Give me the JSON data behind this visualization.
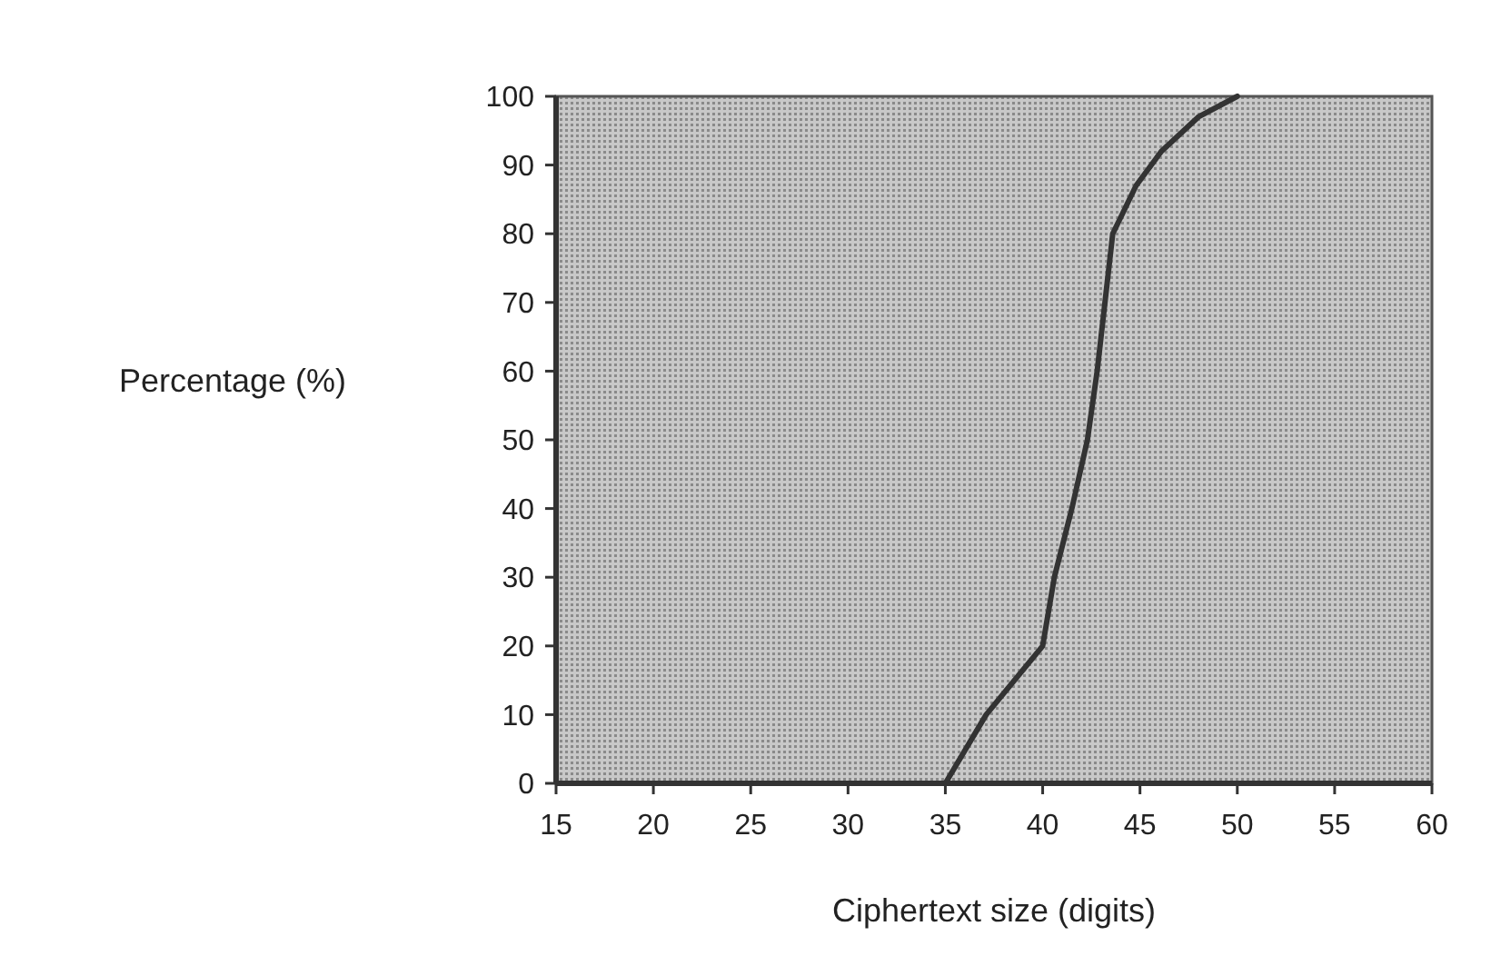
{
  "chart_data": {
    "type": "line",
    "xlabel": "Ciphertext size (digits)",
    "ylabel": "Percentage (%)",
    "xlim": [
      15,
      60
    ],
    "xticks": [
      15,
      20,
      25,
      30,
      35,
      40,
      45,
      50,
      55,
      60
    ],
    "ylim": [
      0,
      100
    ],
    "yticks": [
      0,
      10,
      20,
      30,
      40,
      50,
      60,
      70,
      80,
      90,
      100
    ],
    "grid": false,
    "marker": "none",
    "line_style": "solid",
    "x": [
      35,
      37.1,
      40,
      40.6,
      41.5,
      42.3,
      42.8,
      43.2,
      43.6,
      44.8,
      46.1,
      48,
      50
    ],
    "series": [
      {
        "color": "#333333",
        "values": [
          0,
          10,
          20,
          30,
          40,
          50,
          60,
          70,
          80,
          87,
          92,
          97,
          100
        ]
      }
    ]
  }
}
